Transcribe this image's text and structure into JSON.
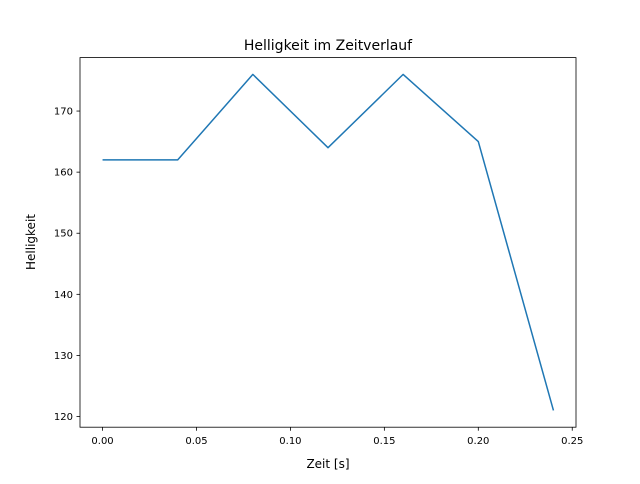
{
  "chart_data": {
    "type": "line",
    "title": "Helligkeit im Zeitverlauf",
    "xlabel": "Zeit [s]",
    "ylabel": "Helligkeit",
    "x": [
      0.0,
      0.04,
      0.08,
      0.12,
      0.16,
      0.2,
      0.24
    ],
    "series": [
      {
        "name": "Helligkeit",
        "values": [
          162,
          162,
          176,
          164,
          176,
          165,
          121
        ],
        "color": "#1f77b4"
      }
    ],
    "xlim": [
      -0.012,
      0.252
    ],
    "ylim": [
      118.25,
      178.75
    ],
    "xticks": [
      0.0,
      0.05,
      0.1,
      0.15,
      0.2,
      0.25
    ],
    "xtick_labels": [
      "0.00",
      "0.05",
      "0.10",
      "0.15",
      "0.20",
      "0.25"
    ],
    "yticks": [
      120,
      130,
      140,
      150,
      160,
      170
    ],
    "ytick_labels": [
      "120",
      "130",
      "140",
      "150",
      "160",
      "170"
    ],
    "grid": false,
    "legend": "none"
  }
}
